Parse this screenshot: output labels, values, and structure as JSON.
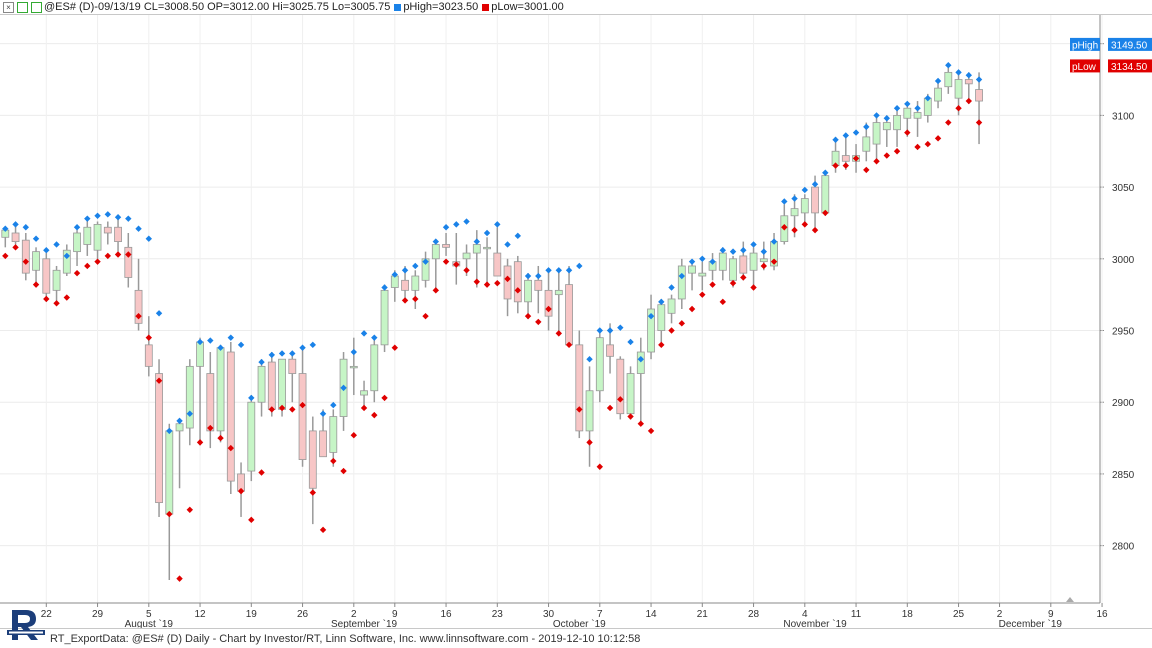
{
  "header": {
    "close_glyph": "×",
    "symbol_text": "@ES# (D)-09/13/19 CL=3008.50 OP=3012.00 Hi=3025.75 Lo=3005.75",
    "phigh_text": "pHigh=3023.50",
    "plow_text": "pLow=3001.00",
    "phigh_color": "#1a82e8",
    "plow_color": "#e00000"
  },
  "footer": {
    "text": "RT_ExportData: @ES# (D) Daily - Chart by Investor/RT, Linn Software, Inc. www.linnsoftware.com - 2019-12-10 10:12:58",
    "logo_icon": "investor-rt-logo-icon"
  },
  "chart_data": {
    "type": "candlestick",
    "y_ticks": [
      2800,
      2850,
      2900,
      2950,
      3000,
      3050,
      3100,
      3150
    ],
    "ylim": [
      2760,
      3170
    ],
    "grid": true,
    "up_color": "#c6f5c6",
    "down_color": "#f7c6c6",
    "wick_color": "#999999",
    "phigh_color": "#1a82e8",
    "plow_color": "#e00000",
    "x_day_ticks": [
      {
        "i": 4,
        "label": "22"
      },
      {
        "i": 9,
        "label": "29"
      },
      {
        "i": 14,
        "label": "5"
      },
      {
        "i": 19,
        "label": "12"
      },
      {
        "i": 24,
        "label": "19"
      },
      {
        "i": 29,
        "label": "26"
      },
      {
        "i": 34,
        "label": "2"
      },
      {
        "i": 38,
        "label": "9"
      },
      {
        "i": 43,
        "label": "16"
      },
      {
        "i": 48,
        "label": "23"
      },
      {
        "i": 53,
        "label": "30"
      },
      {
        "i": 58,
        "label": "7"
      },
      {
        "i": 63,
        "label": "14"
      },
      {
        "i": 68,
        "label": "21"
      },
      {
        "i": 73,
        "label": "28"
      },
      {
        "i": 78,
        "label": "4"
      },
      {
        "i": 83,
        "label": "11"
      },
      {
        "i": 88,
        "label": "18"
      },
      {
        "i": 93,
        "label": "25"
      },
      {
        "i": 97,
        "label": "2"
      },
      {
        "i": 102,
        "label": "9"
      },
      {
        "i": 107,
        "label": "16"
      }
    ],
    "x_month_labels": [
      {
        "i": 14,
        "label": "August `19"
      },
      {
        "i": 35,
        "label": "September `19"
      },
      {
        "i": 56,
        "label": "October `19"
      },
      {
        "i": 79,
        "label": "November `19"
      },
      {
        "i": 100,
        "label": "December `19"
      }
    ],
    "last_labels": [
      {
        "name": "pHigh",
        "value_text": "3149.50",
        "value": 3149.5,
        "color": "#1a82e8"
      },
      {
        "name": "pLow",
        "value_text": "3134.50",
        "value": 3134.5,
        "color": "#e00000"
      }
    ],
    "candles": [
      {
        "o": 3015,
        "h": 3022,
        "l": 3008,
        "c": 3020,
        "ph": 3021,
        "pl": 3002
      },
      {
        "o": 3018,
        "h": 3025,
        "l": 3010,
        "c": 3012,
        "ph": 3024,
        "pl": 3008
      },
      {
        "o": 3013,
        "h": 3018,
        "l": 2985,
        "c": 2990,
        "ph": 3022,
        "pl": 2998
      },
      {
        "o": 2992,
        "h": 3008,
        "l": 2983,
        "c": 3005,
        "ph": 3014,
        "pl": 2982
      },
      {
        "o": 3000,
        "h": 3004,
        "l": 2970,
        "c": 2976,
        "ph": 3006,
        "pl": 2972
      },
      {
        "o": 2978,
        "h": 2995,
        "l": 2970,
        "c": 2992,
        "ph": 3010,
        "pl": 2969
      },
      {
        "o": 2990,
        "h": 3010,
        "l": 2988,
        "c": 3006,
        "ph": 3002,
        "pl": 2973
      },
      {
        "o": 3005,
        "h": 3020,
        "l": 2995,
        "c": 3018,
        "ph": 3022,
        "pl": 2990
      },
      {
        "o": 3010,
        "h": 3028,
        "l": 3002,
        "c": 3022,
        "ph": 3028,
        "pl": 2995
      },
      {
        "o": 3006,
        "h": 3026,
        "l": 3000,
        "c": 3024,
        "ph": 3030,
        "pl": 2998
      },
      {
        "o": 3022,
        "h": 3026,
        "l": 3010,
        "c": 3018,
        "ph": 3031,
        "pl": 3002
      },
      {
        "o": 3022,
        "h": 3028,
        "l": 3005,
        "c": 3012,
        "ph": 3029,
        "pl": 3003
      },
      {
        "o": 3008,
        "h": 3018,
        "l": 2980,
        "c": 2987,
        "ph": 3028,
        "pl": 3003
      },
      {
        "o": 2978,
        "h": 3000,
        "l": 2950,
        "c": 2955,
        "ph": 3021,
        "pl": 2960
      },
      {
        "o": 2940,
        "h": 2960,
        "l": 2918,
        "c": 2925,
        "ph": 3014,
        "pl": 2945
      },
      {
        "o": 2920,
        "h": 2930,
        "l": 2820,
        "c": 2830,
        "ph": 2962,
        "pl": 2915
      },
      {
        "o": 2822,
        "h": 2885,
        "l": 2776,
        "c": 2880,
        "ph": 2880,
        "pl": 2822
      },
      {
        "o": 2880,
        "h": 2885,
        "l": 2840,
        "c": 2885,
        "ph": 2887,
        "pl": 2777
      },
      {
        "o": 2882,
        "h": 2930,
        "l": 2870,
        "c": 2925,
        "ph": 2892,
        "pl": 2825
      },
      {
        "o": 2925,
        "h": 2945,
        "l": 2870,
        "c": 2942,
        "ph": 2942,
        "pl": 2872
      },
      {
        "o": 2920,
        "h": 2935,
        "l": 2868,
        "c": 2880,
        "ph": 2943,
        "pl": 2882
      },
      {
        "o": 2880,
        "h": 2940,
        "l": 2872,
        "c": 2938,
        "ph": 2938,
        "pl": 2875
      },
      {
        "o": 2935,
        "h": 2942,
        "l": 2836,
        "c": 2845,
        "ph": 2945,
        "pl": 2868
      },
      {
        "o": 2850,
        "h": 2858,
        "l": 2820,
        "c": 2838,
        "ph": 2940,
        "pl": 2838
      },
      {
        "o": 2852,
        "h": 2905,
        "l": 2845,
        "c": 2900,
        "ph": 2903,
        "pl": 2818
      },
      {
        "o": 2900,
        "h": 2930,
        "l": 2890,
        "c": 2925,
        "ph": 2928,
        "pl": 2851
      },
      {
        "o": 2928,
        "h": 2935,
        "l": 2890,
        "c": 2895,
        "ph": 2933,
        "pl": 2895
      },
      {
        "o": 2895,
        "h": 2930,
        "l": 2890,
        "c": 2930,
        "ph": 2934,
        "pl": 2896
      },
      {
        "o": 2930,
        "h": 2935,
        "l": 2900,
        "c": 2920,
        "ph": 2934,
        "pl": 2895
      },
      {
        "o": 2920,
        "h": 2938,
        "l": 2855,
        "c": 2860,
        "ph": 2938,
        "pl": 2898
      },
      {
        "o": 2880,
        "h": 2890,
        "l": 2815,
        "c": 2840,
        "ph": 2940,
        "pl": 2837
      },
      {
        "o": 2880,
        "h": 2895,
        "l": 2862,
        "c": 2862,
        "ph": 2892,
        "pl": 2811
      },
      {
        "o": 2865,
        "h": 2895,
        "l": 2855,
        "c": 2890,
        "ph": 2898,
        "pl": 2859
      },
      {
        "o": 2890,
        "h": 2935,
        "l": 2880,
        "c": 2930,
        "ph": 2910,
        "pl": 2852
      },
      {
        "o": 2925,
        "h": 2945,
        "l": 2905,
        "c": 2925,
        "ph": 2935,
        "pl": 2877
      },
      {
        "o": 2905,
        "h": 2915,
        "l": 2896,
        "c": 2908,
        "ph": 2948,
        "pl": 2896
      },
      {
        "o": 2908,
        "h": 2945,
        "l": 2900,
        "c": 2940,
        "ph": 2945,
        "pl": 2891
      },
      {
        "o": 2940,
        "h": 2982,
        "l": 2935,
        "c": 2978,
        "ph": 2980,
        "pl": 2903
      },
      {
        "o": 2980,
        "h": 2992,
        "l": 2970,
        "c": 2988,
        "ph": 2989,
        "pl": 2938
      },
      {
        "o": 2985,
        "h": 2995,
        "l": 2970,
        "c": 2978,
        "ph": 2992,
        "pl": 2971
      },
      {
        "o": 2978,
        "h": 2992,
        "l": 2965,
        "c": 2988,
        "ph": 2995,
        "pl": 2972
      },
      {
        "o": 2985,
        "h": 3005,
        "l": 2980,
        "c": 3000,
        "ph": 2998,
        "pl": 2960
      },
      {
        "o": 3000,
        "h": 3012,
        "l": 2978,
        "c": 3010,
        "ph": 3012,
        "pl": 2978
      },
      {
        "o": 3010,
        "h": 3018,
        "l": 3002,
        "c": 3008,
        "ph": 3022,
        "pl": 2998
      },
      {
        "o": 2998,
        "h": 3018,
        "l": 2982,
        "c": 2995,
        "ph": 3024,
        "pl": 2996
      },
      {
        "o": 3000,
        "h": 3010,
        "l": 2988,
        "c": 3004,
        "ph": 3026,
        "pl": 2992
      },
      {
        "o": 3004,
        "h": 3020,
        "l": 2980,
        "c": 3010,
        "ph": 3012,
        "pl": 2984
      },
      {
        "o": 3008,
        "h": 3015,
        "l": 2982,
        "c": 3008,
        "ph": 3018,
        "pl": 2982
      },
      {
        "o": 3004,
        "h": 3022,
        "l": 2988,
        "c": 2988,
        "ph": 3024,
        "pl": 2983
      },
      {
        "o": 2995,
        "h": 3000,
        "l": 2960,
        "c": 2972,
        "ph": 3010,
        "pl": 2986
      },
      {
        "o": 2998,
        "h": 3002,
        "l": 2962,
        "c": 2970,
        "ph": 3016,
        "pl": 2978
      },
      {
        "o": 2970,
        "h": 2990,
        "l": 2958,
        "c": 2985,
        "ph": 2988,
        "pl": 2960
      },
      {
        "o": 2985,
        "h": 2995,
        "l": 2962,
        "c": 2978,
        "ph": 2988,
        "pl": 2956
      },
      {
        "o": 2978,
        "h": 2992,
        "l": 2950,
        "c": 2960,
        "ph": 2992,
        "pl": 2965
      },
      {
        "o": 2975,
        "h": 2992,
        "l": 2948,
        "c": 2978,
        "ph": 2992,
        "pl": 2948
      },
      {
        "o": 2982,
        "h": 2995,
        "l": 2940,
        "c": 2940,
        "ph": 2992,
        "pl": 2940
      },
      {
        "o": 2940,
        "h": 2950,
        "l": 2875,
        "c": 2880,
        "ph": 2995,
        "pl": 2895
      },
      {
        "o": 2880,
        "h": 2925,
        "l": 2855,
        "c": 2908,
        "ph": 2930,
        "pl": 2872
      },
      {
        "o": 2908,
        "h": 2950,
        "l": 2900,
        "c": 2945,
        "ph": 2950,
        "pl": 2855
      },
      {
        "o": 2940,
        "h": 2955,
        "l": 2920,
        "c": 2932,
        "ph": 2950,
        "pl": 2896
      },
      {
        "o": 2930,
        "h": 2932,
        "l": 2888,
        "c": 2892,
        "ph": 2952,
        "pl": 2902
      },
      {
        "o": 2892,
        "h": 2925,
        "l": 2888,
        "c": 2920,
        "ph": 2942,
        "pl": 2890
      },
      {
        "o": 2920,
        "h": 2945,
        "l": 2885,
        "c": 2935,
        "ph": 2930,
        "pl": 2885
      },
      {
        "o": 2935,
        "h": 2975,
        "l": 2930,
        "c": 2965,
        "ph": 2960,
        "pl": 2880
      },
      {
        "o": 2950,
        "h": 2972,
        "l": 2942,
        "c": 2968,
        "ph": 2970,
        "pl": 2940
      },
      {
        "o": 2962,
        "h": 2975,
        "l": 2955,
        "c": 2972,
        "ph": 2980,
        "pl": 2950
      },
      {
        "o": 2972,
        "h": 3000,
        "l": 2965,
        "c": 2995,
        "ph": 2988,
        "pl": 2955
      },
      {
        "o": 2990,
        "h": 2998,
        "l": 2978,
        "c": 2995,
        "ph": 2998,
        "pl": 2965
      },
      {
        "o": 2988,
        "h": 2998,
        "l": 2978,
        "c": 2990,
        "ph": 3000,
        "pl": 2975
      },
      {
        "o": 2992,
        "h": 3004,
        "l": 2985,
        "c": 2998,
        "ph": 2998,
        "pl": 2982
      },
      {
        "o": 2992,
        "h": 3008,
        "l": 2985,
        "c": 3004,
        "ph": 3006,
        "pl": 2970
      },
      {
        "o": 2985,
        "h": 3002,
        "l": 2980,
        "c": 3000,
        "ph": 3005,
        "pl": 2983
      },
      {
        "o": 3002,
        "h": 3012,
        "l": 2985,
        "c": 2990,
        "ph": 3006,
        "pl": 2987
      },
      {
        "o": 2992,
        "h": 3008,
        "l": 2980,
        "c": 3004,
        "ph": 3010,
        "pl": 2980
      },
      {
        "o": 2998,
        "h": 3012,
        "l": 2992,
        "c": 3000,
        "ph": 3005,
        "pl": 2995
      },
      {
        "o": 2995,
        "h": 3018,
        "l": 2992,
        "c": 3012,
        "ph": 3012,
        "pl": 2998
      },
      {
        "o": 3012,
        "h": 3038,
        "l": 3010,
        "c": 3030,
        "ph": 3040,
        "pl": 3022
      },
      {
        "o": 3030,
        "h": 3045,
        "l": 3015,
        "c": 3035,
        "ph": 3042,
        "pl": 3020
      },
      {
        "o": 3032,
        "h": 3045,
        "l": 3025,
        "c": 3042,
        "ph": 3048,
        "pl": 3024
      },
      {
        "o": 3050,
        "h": 3058,
        "l": 3022,
        "c": 3032,
        "ph": 3052,
        "pl": 3020
      },
      {
        "o": 3032,
        "h": 3060,
        "l": 3030,
        "c": 3058,
        "ph": 3060,
        "pl": 3032
      },
      {
        "o": 3065,
        "h": 3085,
        "l": 3060,
        "c": 3075,
        "ph": 3083,
        "pl": 3065
      },
      {
        "o": 3072,
        "h": 3086,
        "l": 3062,
        "c": 3068,
        "ph": 3086,
        "pl": 3065
      },
      {
        "o": 3068,
        "h": 3080,
        "l": 3060,
        "c": 3072,
        "ph": 3088,
        "pl": 3070
      },
      {
        "o": 3075,
        "h": 3095,
        "l": 3068,
        "c": 3085,
        "ph": 3092,
        "pl": 3062
      },
      {
        "o": 3080,
        "h": 3100,
        "l": 3068,
        "c": 3095,
        "ph": 3100,
        "pl": 3068
      },
      {
        "o": 3090,
        "h": 3100,
        "l": 3078,
        "c": 3095,
        "ph": 3098,
        "pl": 3072
      },
      {
        "o": 3090,
        "h": 3105,
        "l": 3078,
        "c": 3100,
        "ph": 3105,
        "pl": 3075
      },
      {
        "o": 3098,
        "h": 3108,
        "l": 3085,
        "c": 3105,
        "ph": 3108,
        "pl": 3088
      },
      {
        "o": 3098,
        "h": 3110,
        "l": 3085,
        "c": 3102,
        "ph": 3105,
        "pl": 3078
      },
      {
        "o": 3100,
        "h": 3115,
        "l": 3095,
        "c": 3112,
        "ph": 3112,
        "pl": 3080
      },
      {
        "o": 3110,
        "h": 3125,
        "l": 3105,
        "c": 3119,
        "ph": 3124,
        "pl": 3084
      },
      {
        "o": 3120,
        "h": 3135,
        "l": 3115,
        "c": 3130,
        "ph": 3135,
        "pl": 3095
      },
      {
        "o": 3112,
        "h": 3130,
        "l": 3100,
        "c": 3125,
        "ph": 3130,
        "pl": 3105
      },
      {
        "o": 3125,
        "h": 3130,
        "l": 3108,
        "c": 3122,
        "ph": 3128,
        "pl": 3110
      },
      {
        "o": 3118,
        "h": 3130,
        "l": 3080,
        "c": 3110,
        "ph": 3125,
        "pl": 3095
      }
    ]
  }
}
